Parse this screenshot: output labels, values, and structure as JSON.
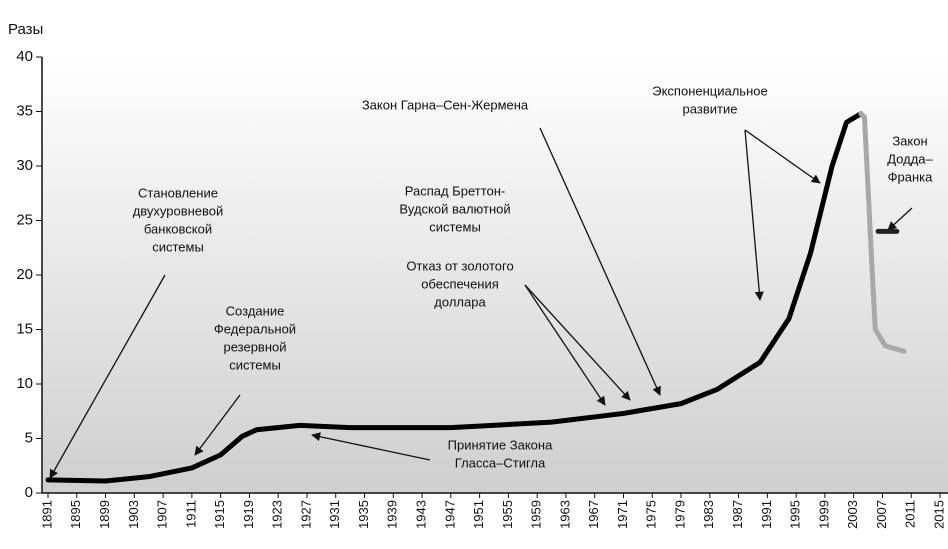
{
  "chart_data": {
    "type": "line",
    "y_label": "Разы",
    "xlim": [
      1891,
      2015
    ],
    "xticks": [
      1891,
      1895,
      1899,
      1903,
      1907,
      1911,
      1915,
      1919,
      1923,
      1927,
      1931,
      1935,
      1939,
      1943,
      1947,
      1951,
      1955,
      1959,
      1963,
      1967,
      1971,
      1975,
      1979,
      1983,
      1987,
      1991,
      1995,
      1999,
      2003,
      2007,
      2011,
      2015
    ],
    "ylim": [
      0,
      40
    ],
    "yticks": [
      0,
      5,
      10,
      15,
      20,
      25,
      30,
      35,
      40
    ],
    "series": [
      {
        "color": "#000000",
        "x": [
          1891,
          1899,
          1905,
          1911,
          1915,
          1918,
          1920,
          1926,
          1933,
          1947,
          1961,
          1971,
          1979,
          1984,
          1990,
          1994,
          1997,
          2000,
          2002,
          2004
        ],
        "values": [
          1.2,
          1.1,
          1.5,
          2.3,
          3.5,
          5.2,
          5.8,
          6.2,
          6.0,
          6.0,
          6.5,
          7.3,
          8.2,
          9.5,
          12,
          16,
          22,
          30,
          34,
          34.8
        ]
      },
      {
        "color": "#a8a8a8",
        "x": [
          2004,
          2004.5,
          2005,
          2005.6,
          2006,
          2007.4,
          2010
        ],
        "values": [
          34.8,
          34.5,
          28,
          20,
          15,
          13.5,
          13
        ]
      },
      {
        "color": "#222222",
        "x": [
          2006.4,
          2009
        ],
        "values": [
          24,
          24
        ]
      }
    ],
    "annotations": [
      {
        "lines": [
          "Становление",
          "двухуровневой",
          "банковской",
          "системы"
        ]
      },
      {
        "lines": [
          "Создание",
          "Федеральной",
          "резервной",
          "системы"
        ]
      },
      {
        "lines": [
          "Закон Гарна–Сен-Жермена"
        ]
      },
      {
        "lines": [
          "Распад Бреттон-",
          "Вудской валютной",
          "системы"
        ]
      },
      {
        "lines": [
          "Отказ от золотого",
          "обеспечения",
          "доллара"
        ]
      },
      {
        "lines": [
          "Экспоненциальное",
          "развитие"
        ]
      },
      {
        "lines": [
          "Закон",
          "Додда–",
          "Франка"
        ]
      },
      {
        "lines": [
          "Принятие Закона",
          "Гласса–Стигла"
        ]
      }
    ]
  }
}
